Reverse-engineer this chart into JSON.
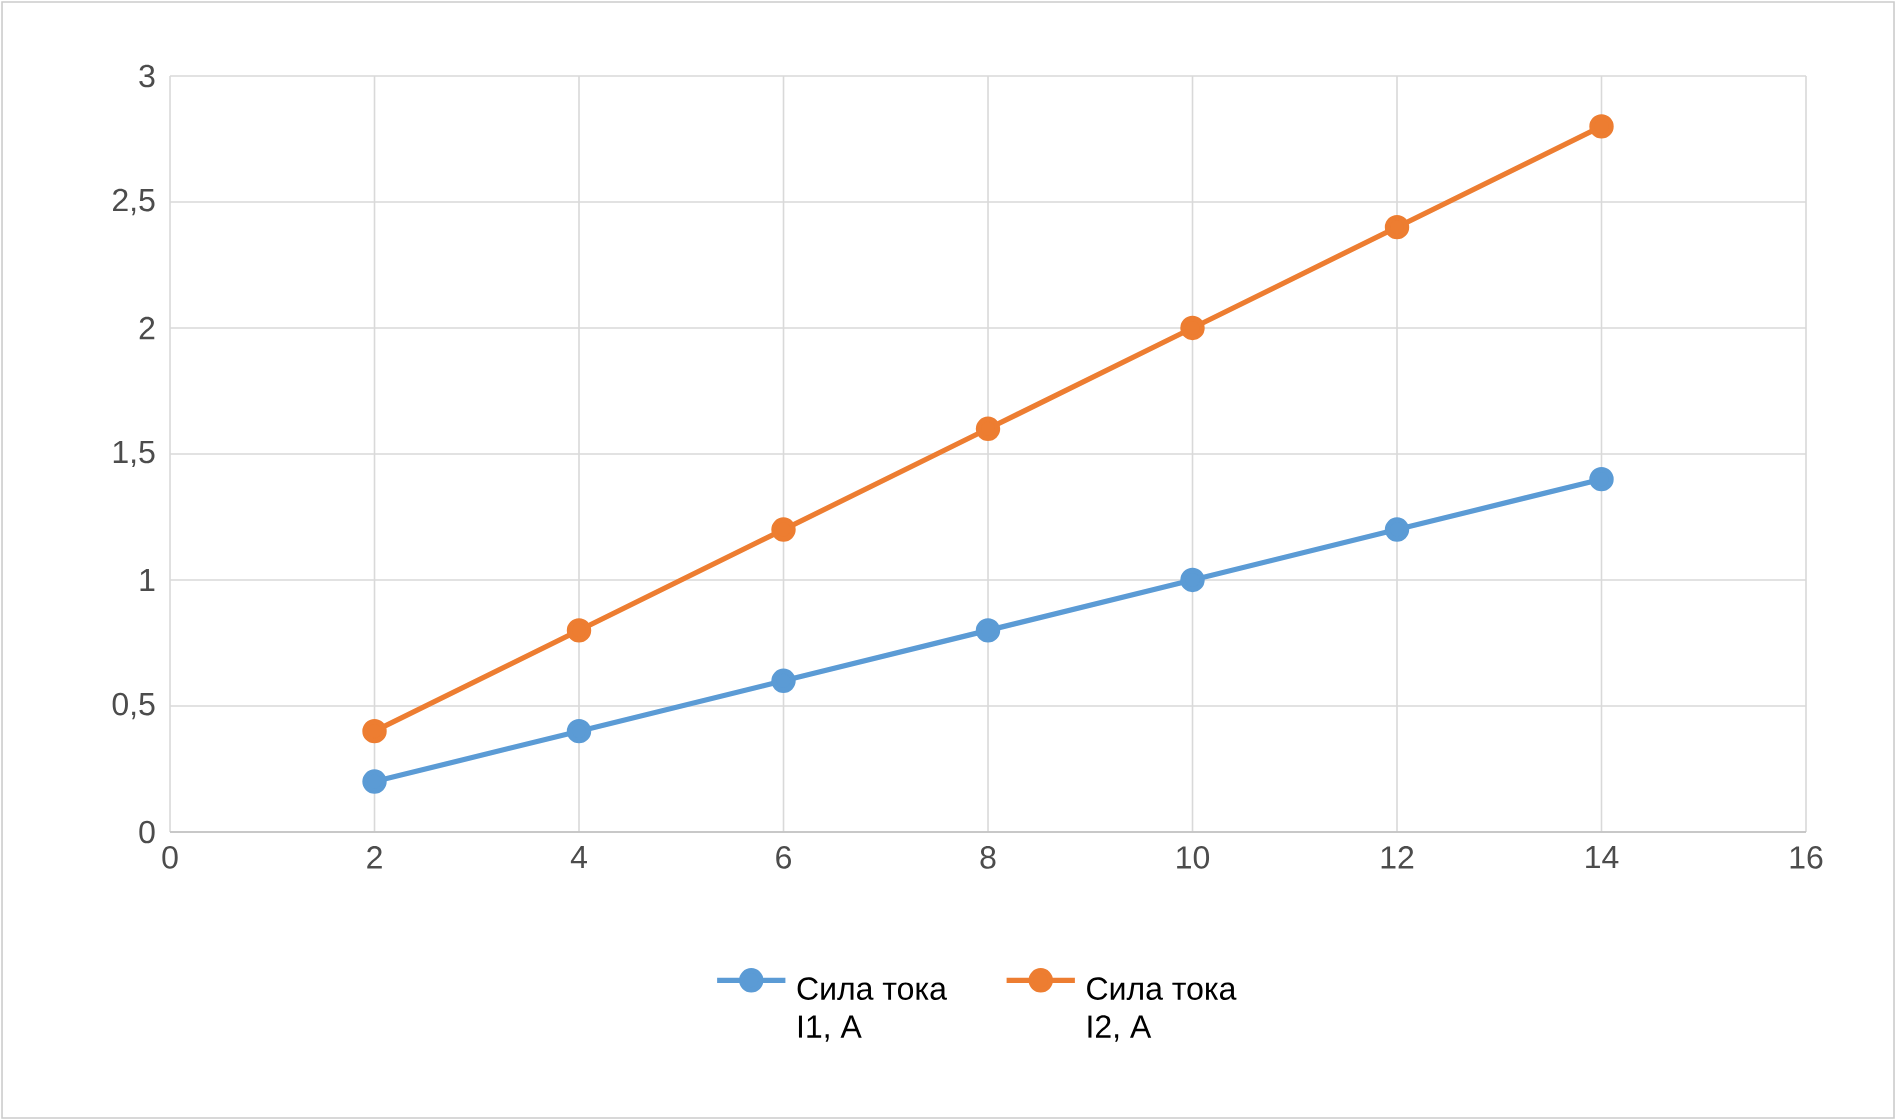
{
  "chart_data": {
    "type": "line",
    "xlim": [
      0,
      16
    ],
    "xticks": [
      0,
      2,
      4,
      6,
      8,
      10,
      12,
      14,
      16
    ],
    "ylim": [
      0,
      3
    ],
    "yticks": [
      0,
      {
        "value": 0.5,
        "label": "0,5"
      },
      1,
      {
        "value": 1.5,
        "label": "1,5"
      },
      2,
      {
        "value": 2.5,
        "label": "2,5"
      },
      3
    ],
    "x": [
      2,
      4,
      6,
      8,
      10,
      12,
      14
    ],
    "series": [
      {
        "name": "Сила тока I1, А",
        "color": "#5b9bd5",
        "values": [
          0.2,
          0.4,
          0.6,
          0.8,
          1.0,
          1.2,
          1.4
        ]
      },
      {
        "name": "Сила тока I2, А",
        "color": "#ed7d31",
        "values": [
          0.4,
          0.8,
          1.2,
          1.6,
          2.0,
          2.4,
          2.8
        ]
      }
    ],
    "grid": true,
    "legend": "bottom",
    "marker": "circle",
    "line_style": "solid"
  }
}
